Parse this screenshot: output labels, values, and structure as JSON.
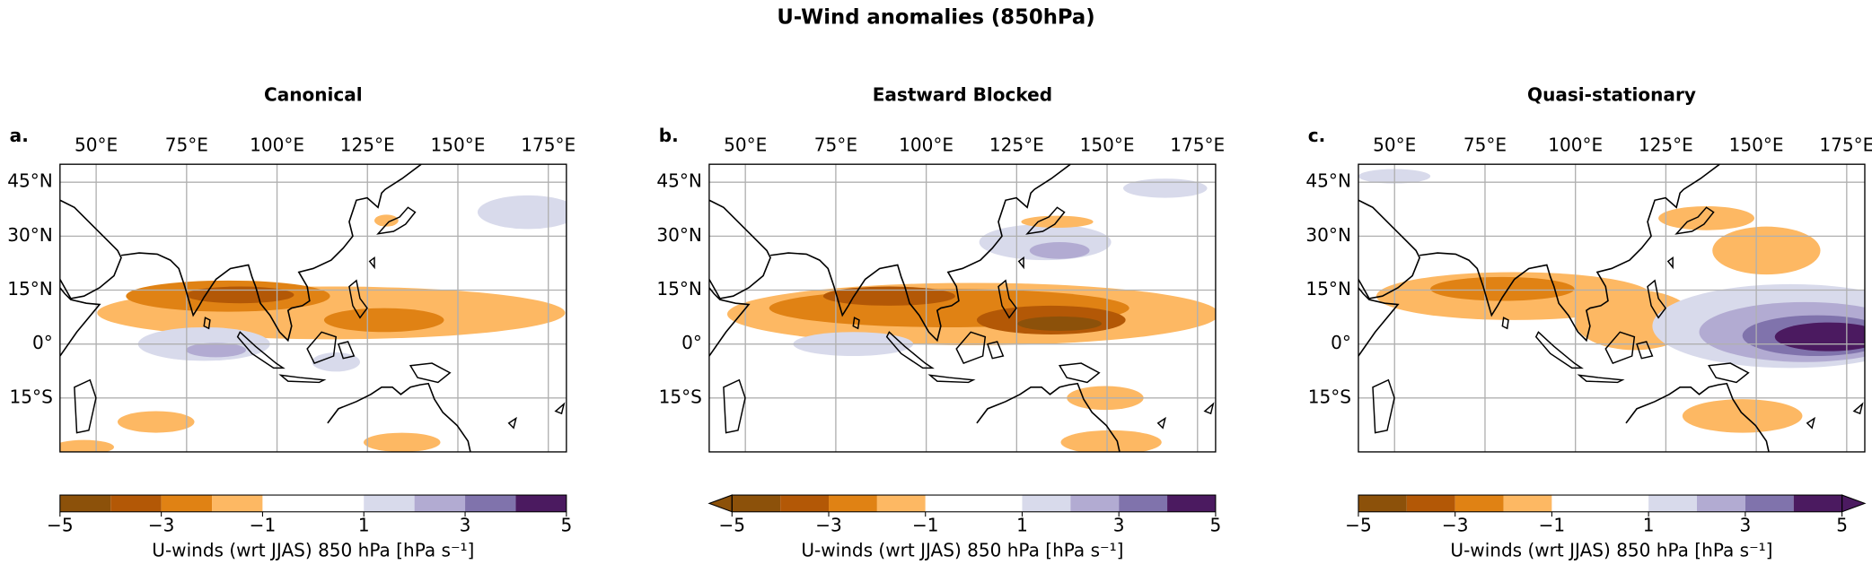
{
  "title": "U-Wind anomalies (850hPa)",
  "chart_data": [
    {
      "type": "map",
      "panel_label": "a.",
      "title": "Canonical",
      "xlim": [
        40,
        180
      ],
      "ylim": [
        -30,
        50
      ],
      "xticks": [
        {
          "value": 50,
          "label": "50°E"
        },
        {
          "value": 75,
          "label": "75°E"
        },
        {
          "value": 100,
          "label": "100°E"
        },
        {
          "value": 125,
          "label": "125°E"
        },
        {
          "value": 150,
          "label": "150°E"
        },
        {
          "value": 175,
          "label": "175°E"
        }
      ],
      "yticks": [
        {
          "value": 45,
          "label": "45°N"
        },
        {
          "value": 30,
          "label": "30°N"
        },
        {
          "value": 15,
          "label": "15°N"
        },
        {
          "value": 0,
          "label": "0°"
        },
        {
          "value": -15,
          "label": "15°S"
        }
      ],
      "grid": true,
      "colorbar": {
        "levels": [
          -5,
          -4,
          -3,
          -2,
          -1,
          1,
          2,
          3,
          4,
          5
        ],
        "colors": [
          "#8c510a",
          "#b35806",
          "#e08214",
          "#fdb863",
          "#ffffff",
          "#d8daeb",
          "#b2abd2",
          "#8073ac",
          "#4b1a60"
        ],
        "ticks": [
          {
            "value": -5,
            "label": "−5"
          },
          {
            "value": -3,
            "label": "−3"
          },
          {
            "value": -1,
            "label": "−1"
          },
          1,
          3,
          5
        ],
        "label": "U-winds (wrt JJAS) 850 hPa [hPa s⁻¹]",
        "extend": "neither"
      }
    },
    {
      "type": "map",
      "panel_label": "b.",
      "title": "Eastward Blocked",
      "xlim": [
        40,
        180
      ],
      "ylim": [
        -30,
        50
      ],
      "xticks": [
        {
          "value": 50,
          "label": "50°E"
        },
        {
          "value": 75,
          "label": "75°E"
        },
        {
          "value": 100,
          "label": "100°E"
        },
        {
          "value": 125,
          "label": "125°E"
        },
        {
          "value": 150,
          "label": "150°E"
        },
        {
          "value": 175,
          "label": "175°E"
        }
      ],
      "yticks": [
        {
          "value": 45,
          "label": "45°N"
        },
        {
          "value": 30,
          "label": "30°N"
        },
        {
          "value": 15,
          "label": "15°N"
        },
        {
          "value": 0,
          "label": "0°"
        },
        {
          "value": -15,
          "label": "15°S"
        }
      ],
      "grid": true,
      "colorbar": {
        "levels": [
          -5,
          -4,
          -3,
          -2,
          -1,
          1,
          2,
          3,
          4,
          5
        ],
        "colors": [
          "#8c510a",
          "#b35806",
          "#e08214",
          "#fdb863",
          "#ffffff",
          "#d8daeb",
          "#b2abd2",
          "#8073ac",
          "#4b1a60"
        ],
        "ticks": [
          {
            "value": -5,
            "label": "−5"
          },
          {
            "value": -3,
            "label": "−3"
          },
          {
            "value": -1,
            "label": "−1"
          },
          1,
          3,
          5
        ],
        "label": "U-winds (wrt JJAS) 850 hPa [hPa s⁻¹]",
        "extend": "min"
      }
    },
    {
      "type": "map",
      "panel_label": "c.",
      "title": "Quasi-stationary",
      "xlim": [
        40,
        180
      ],
      "ylim": [
        -30,
        50
      ],
      "xticks": [
        {
          "value": 50,
          "label": "50°E"
        },
        {
          "value": 75,
          "label": "75°E"
        },
        {
          "value": 100,
          "label": "100°E"
        },
        {
          "value": 125,
          "label": "125°E"
        },
        {
          "value": 150,
          "label": "150°E"
        },
        {
          "value": 175,
          "label": "175°E"
        }
      ],
      "yticks": [
        {
          "value": 45,
          "label": "45°N"
        },
        {
          "value": 30,
          "label": "30°N"
        },
        {
          "value": 15,
          "label": "15°N"
        },
        {
          "value": 0,
          "label": "0°"
        },
        {
          "value": -15,
          "label": "15°S"
        }
      ],
      "grid": true,
      "colorbar": {
        "levels": [
          -5,
          -4,
          -3,
          -2,
          -1,
          1,
          2,
          3,
          4,
          5
        ],
        "colors": [
          "#8c510a",
          "#b35806",
          "#e08214",
          "#fdb863",
          "#ffffff",
          "#d8daeb",
          "#b2abd2",
          "#8073ac",
          "#4b1a60"
        ],
        "ticks": [
          {
            "value": -5,
            "label": "−5"
          },
          {
            "value": -3,
            "label": "−3"
          },
          {
            "value": -1,
            "label": "−1"
          },
          1,
          3,
          5
        ],
        "label": "U-winds (wrt JJAS) 850 hPa [hPa s⁻¹]",
        "extend": "max"
      }
    }
  ]
}
